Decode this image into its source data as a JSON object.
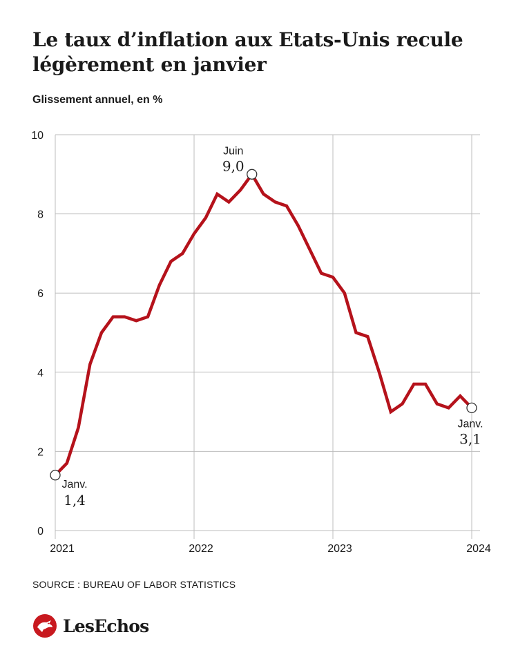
{
  "title": "Le taux d’inflation aux Etats-Unis recule légèrement en janvier",
  "subtitle": "Glissement annuel, en %",
  "source": "SOURCE : BUREAU OF LABOR STATISTICS",
  "logo": {
    "name": "LesEchos",
    "icon": "les-echos-emblem-icon",
    "color": "#c8191f"
  },
  "colors": {
    "line": "#b5121b",
    "grid": "#bcbcbc",
    "text": "#1a1a1a"
  },
  "chart_data": {
    "type": "line",
    "title": "Le taux d’inflation aux Etats-Unis recule légèrement en janvier",
    "subtitle": "Glissement annuel, en %",
    "xlabel": "",
    "ylabel": "",
    "ylim": [
      0,
      10
    ],
    "y_ticks": [
      "0",
      "2",
      "4",
      "6",
      "8",
      "10"
    ],
    "x_ticks": [
      {
        "label": "2021",
        "month": 0
      },
      {
        "label": "2022",
        "month": 12
      },
      {
        "label": "2023",
        "month": 24
      },
      {
        "label": "2024",
        "month": 36
      }
    ],
    "grid": true,
    "x_start": "2021-01",
    "x_end": "2024-01",
    "series": [
      {
        "frequency": "monthly",
        "values": [
          1.4,
          1.7,
          2.6,
          4.2,
          5.0,
          5.4,
          5.4,
          5.3,
          5.4,
          6.2,
          6.8,
          7.0,
          7.5,
          7.9,
          8.5,
          8.3,
          8.6,
          9.0,
          8.5,
          8.3,
          8.2,
          7.7,
          7.1,
          6.5,
          6.4,
          6.0,
          5.0,
          4.9,
          4.0,
          3.0,
          3.2,
          3.7,
          3.7,
          3.2,
          3.1,
          3.4,
          3.1
        ]
      }
    ],
    "annotations": [
      {
        "month": 0,
        "value": 1.4,
        "label": "Janv.",
        "value_label": "1,4",
        "position": "below-right"
      },
      {
        "month": 17,
        "value": 9.0,
        "label": "Juin",
        "value_label": "9,0",
        "position": "above"
      },
      {
        "month": 36,
        "value": 3.1,
        "label": "Janv.",
        "value_label": "3,1",
        "position": "below"
      }
    ]
  }
}
